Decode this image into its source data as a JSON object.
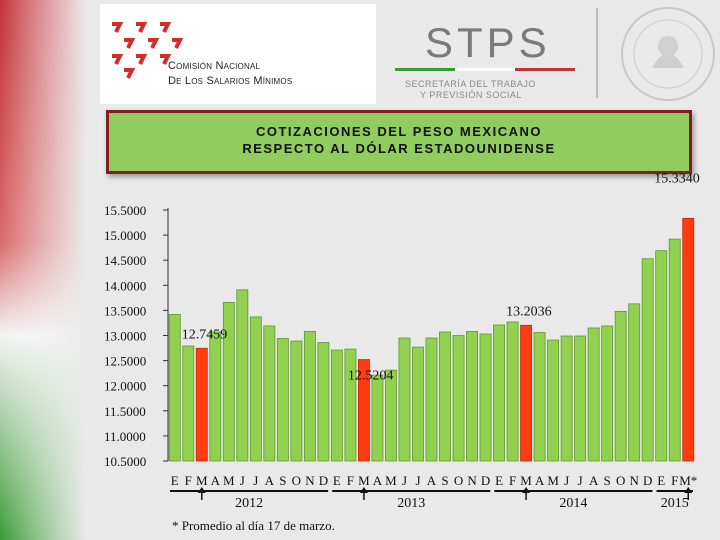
{
  "header": {
    "org_line1": "Comisión Nacional",
    "org_line2": "De Los Salarios Mínimos",
    "stps": "STPS",
    "stps_sub1": "SECRETARÍA DEL TRABAJO",
    "stps_sub2": "Y PREVISIÓN SOCIAL"
  },
  "title_line1": "COTIZACIONES DEL PESO MEXICANO",
  "title_line2": "RESPECTO AL DÓLAR ESTADOUNIDENSE",
  "footnote": "* Promedio al día 17 de marzo.",
  "colors": {
    "bar": "#92d050",
    "highlight": "#ff3c0f",
    "bg_red": "#c2333a",
    "bg_green": "#3a9a35"
  },
  "chart_data": {
    "type": "bar",
    "ylim": [
      10.5,
      15.5
    ],
    "y_ticks": [
      "15.5000",
      "15.0000",
      "14.5000",
      "14.0000",
      "13.5000",
      "13.0000",
      "12.5000",
      "12.0000",
      "11.5000",
      "11.0000",
      "10.5000"
    ],
    "categories": [
      "E",
      "F",
      "M",
      "A",
      "M",
      "J",
      "J",
      "A",
      "S",
      "O",
      "N",
      "D",
      "E",
      "F",
      "M",
      "A",
      "M",
      "J",
      "J",
      "A",
      "S",
      "O",
      "N",
      "D",
      "E",
      "F",
      "M",
      "A",
      "M",
      "J",
      "J",
      "A",
      "S",
      "O",
      "N",
      "D",
      "E",
      "F",
      "M*"
    ],
    "year_labels": [
      {
        "label": "2012",
        "start": 0,
        "end": 11
      },
      {
        "label": "2013",
        "start": 12,
        "end": 23
      },
      {
        "label": "2014",
        "start": 24,
        "end": 35
      },
      {
        "label": "2015",
        "start": 36,
        "end": 38
      }
    ],
    "values": [
      13.42,
      12.79,
      12.7459,
      13.07,
      13.66,
      13.91,
      13.37,
      13.19,
      12.94,
      12.89,
      13.08,
      12.86,
      12.71,
      12.73,
      12.5204,
      12.21,
      12.31,
      12.95,
      12.77,
      12.95,
      13.07,
      13.0,
      13.08,
      13.03,
      13.21,
      13.27,
      13.2036,
      13.06,
      12.91,
      12.99,
      12.99,
      13.15,
      13.19,
      13.48,
      13.63,
      14.53,
      14.69,
      14.92,
      15.334
    ],
    "highlight_indices": [
      2,
      14,
      26,
      38
    ],
    "data_labels": [
      {
        "index": 2,
        "text": "12.7459"
      },
      {
        "index": 14,
        "text": "12.5204"
      },
      {
        "index": 26,
        "text": "13.2036"
      },
      {
        "index": 38,
        "text": "15.3340"
      }
    ],
    "arrow_indices": [
      2,
      14,
      26,
      38
    ]
  }
}
